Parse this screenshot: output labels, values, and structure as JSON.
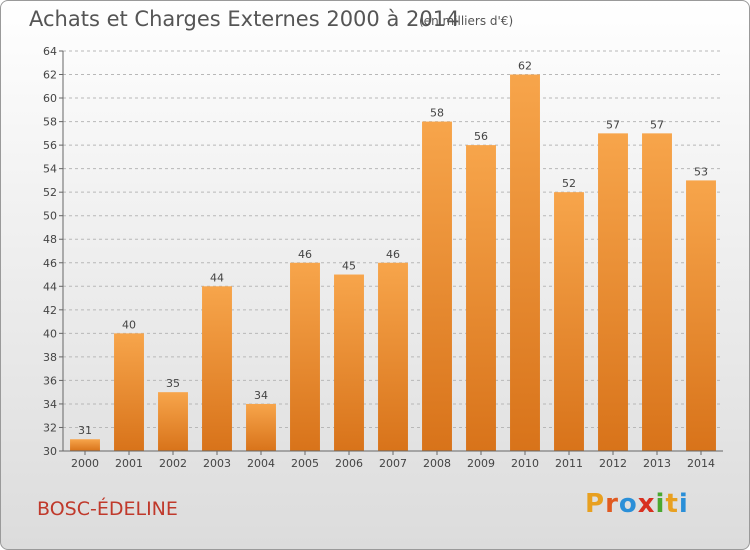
{
  "header": {
    "title": "Achats et Charges Externes 2000 à 2014",
    "subtitle": "(en milliers d'€)"
  },
  "footer": {
    "commune": "BOSC-ÉDELINE",
    "brand": "Proxiti",
    "brand_letters": [
      {
        "ch": "P",
        "color": "#e8a020"
      },
      {
        "ch": "r",
        "color": "#e05a20"
      },
      {
        "ch": "o",
        "color": "#2a8fd8"
      },
      {
        "ch": "x",
        "color": "#d83020"
      },
      {
        "ch": "i",
        "color": "#4aa830"
      },
      {
        "ch": "t",
        "color": "#e8a020"
      },
      {
        "ch": "i",
        "color": "#2a8fd8"
      }
    ]
  },
  "colors": {
    "bar_top": "#f7a54b",
    "bar_bottom": "#d8731a",
    "grid": "#b8b8b8",
    "text": "#444444",
    "commune": "#c0392b"
  },
  "chart_data": {
    "type": "bar",
    "title": "Achats et Charges Externes 2000 à 2014",
    "subtitle": "(en milliers d'€)",
    "categories": [
      "2000",
      "2001",
      "2002",
      "2003",
      "2004",
      "2005",
      "2006",
      "2007",
      "2008",
      "2009",
      "2010",
      "2011",
      "2012",
      "2013",
      "2014"
    ],
    "values": [
      31,
      40,
      35,
      44,
      34,
      46,
      45,
      46,
      58,
      56,
      62,
      52,
      57,
      57,
      53
    ],
    "ylim": [
      30,
      64
    ],
    "yticks": [
      30,
      32,
      34,
      36,
      38,
      40,
      42,
      44,
      46,
      48,
      50,
      52,
      54,
      56,
      58,
      60,
      62,
      64
    ],
    "grid": true,
    "xlabel": "",
    "ylabel": ""
  }
}
